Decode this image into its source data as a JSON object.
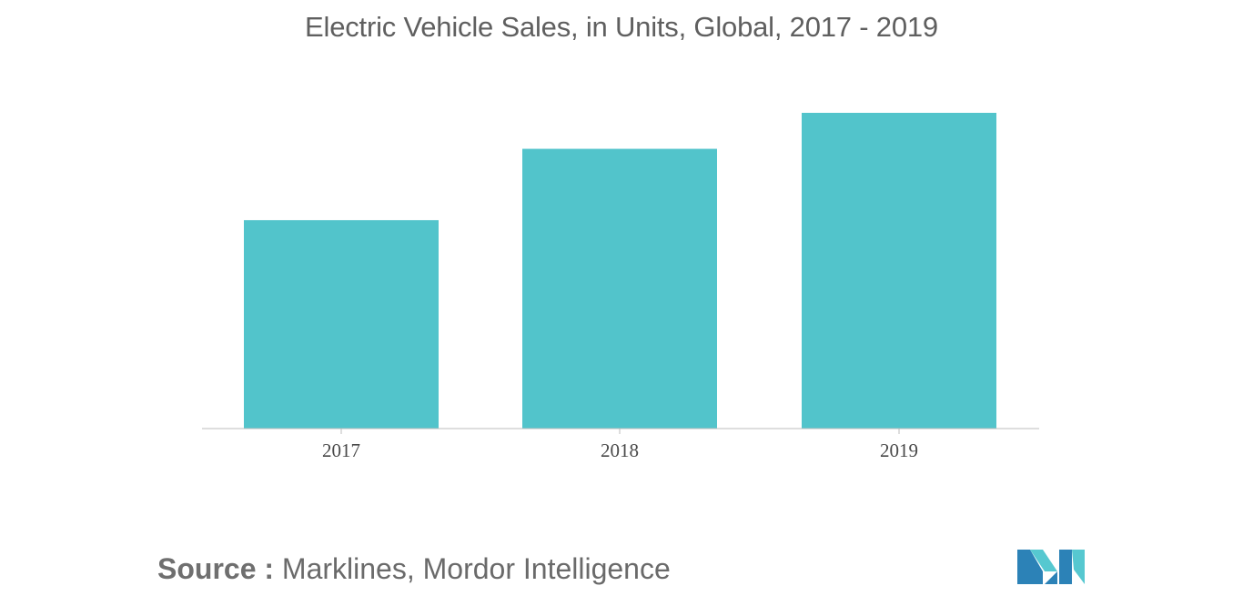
{
  "header": {
    "title": "Electric Vehicle Sales, in Units, Global, 2017 - 2019"
  },
  "footer": {
    "source_label": "Source :",
    "source_text": " Marklines, Mordor Intelligence",
    "logo_icon": "mordor-intelligence-logo-icon"
  },
  "colors": {
    "bar": "#52c4cb",
    "axis": "#bdbdbd",
    "logo_dark": "#2c82b7",
    "logo_light": "#56c8d0"
  },
  "chart_data": {
    "type": "bar",
    "title": "Electric Vehicle Sales, in Units, Global, 2017 - 2019",
    "xlabel": "",
    "ylabel": "",
    "categories": [
      "2017",
      "2018",
      "2019"
    ],
    "values": [
      0.66,
      0.886,
      1.0
    ],
    "ylim": [
      0,
      1.0
    ],
    "grid": false,
    "legend": "none",
    "value_note": "relative heights only; no y-axis values printed"
  }
}
